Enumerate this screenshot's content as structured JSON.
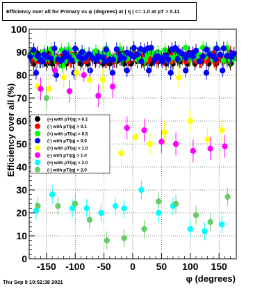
{
  "footer": {
    "timestamp": "Thu Sep  9 10:52:38 2021"
  },
  "chart_data": {
    "type": "scatter",
    "title": "Efficiency over all for Primary vs φ (degrees) at |  η | <= 1.0 at pT > 0.11",
    "xlabel": "φ (degrees)",
    "ylabel": "Efficiency over all (%)",
    "xlim": [
      -180,
      180
    ],
    "ylim": [
      0,
      100
    ],
    "xticks": [
      -150,
      -100,
      -50,
      0,
      50,
      100,
      150
    ],
    "yticks": [
      0,
      10,
      20,
      30,
      40,
      50,
      60,
      70,
      80,
      90,
      100
    ],
    "grid": true,
    "legend_position": "left-middle",
    "series": [
      {
        "name": "(+) with pT/|q| > 0.1",
        "color": "#000000",
        "marker": "circle",
        "band": [
          86,
          90
        ],
        "x": [
          -172,
          -160,
          -150,
          -140,
          -128,
          -115,
          -103,
          -90,
          -78,
          -65,
          -52,
          -40,
          -28,
          -15,
          -3,
          8,
          20,
          32,
          45,
          58,
          70,
          82,
          95,
          108,
          120,
          132,
          145,
          158,
          170
        ],
        "y": [
          85,
          86,
          85,
          85,
          86,
          85,
          86,
          85,
          85,
          86,
          85,
          85,
          86,
          85,
          85,
          86,
          85,
          85,
          86,
          85,
          85,
          86,
          85,
          85,
          86,
          85,
          85,
          86,
          85
        ]
      },
      {
        "name": "(-) with pT/|q| > 0.1",
        "color": "#ff0000",
        "marker": "circle",
        "band": [
          86,
          90
        ],
        "x": [
          -175,
          -162,
          -145,
          -132,
          -120,
          -108,
          -95,
          -82,
          -70,
          -58,
          -45,
          -32,
          -20,
          -8,
          5,
          18,
          30,
          42,
          55,
          68,
          80,
          92,
          105,
          118,
          130,
          142,
          155,
          168
        ],
        "y": [
          87,
          86,
          87,
          86,
          87,
          86,
          87,
          86,
          87,
          86,
          87,
          86,
          87,
          86,
          87,
          86,
          87,
          86,
          87,
          86,
          87,
          86,
          87,
          86,
          87,
          86,
          87,
          86
        ]
      },
      {
        "name": "(+) with pT/|q| > 0.5",
        "color": "#00ff00",
        "marker": "circle",
        "band": [
          86,
          92
        ],
        "x": [
          -170,
          -158,
          -138,
          -122,
          -110,
          -96,
          -84,
          -68,
          -55,
          -42,
          -30,
          -18,
          -6,
          10,
          22,
          36,
          50,
          62,
          75,
          88,
          100,
          114,
          126,
          140,
          152,
          166
        ],
        "y": [
          88,
          87,
          89,
          84,
          88,
          87,
          89,
          88,
          87,
          89,
          88,
          87,
          89,
          88,
          87,
          89,
          88,
          87,
          89,
          88,
          87,
          89,
          88,
          87,
          89,
          88
        ]
      },
      {
        "name": "(-) with pT/|q| > 0.5",
        "color": "#0000ff",
        "marker": "circle",
        "band": [
          86,
          92
        ],
        "x": [
          -168,
          -156,
          -133,
          -118,
          -102,
          -88,
          -74,
          -60,
          -48,
          -35,
          -22,
          -10,
          2,
          15,
          28,
          40,
          52,
          66,
          78,
          92,
          104,
          116,
          128,
          144,
          156,
          172
        ],
        "y": [
          81,
          86,
          80,
          88,
          81,
          87,
          82,
          88,
          86,
          81,
          87,
          82,
          88,
          86,
          82,
          88,
          86,
          81,
          87,
          82,
          88,
          86,
          81,
          87,
          82,
          88
        ]
      },
      {
        "name": "(+) with pT/|q| > 1.0",
        "color": "#ffff00",
        "marker": "circle",
        "x": [
          -165,
          -145,
          -120,
          -98,
          -75,
          -52,
          -20,
          5,
          30,
          55,
          80,
          100,
          130,
          155
        ],
        "y": [
          75,
          74,
          79,
          81,
          78,
          78,
          46,
          53,
          50,
          55,
          79,
          60,
          52,
          56
        ]
      },
      {
        "name": "(-) with pT/|q| > 1.0",
        "color": "#ff00ff",
        "marker": "circle",
        "x": [
          -160,
          -135,
          -110,
          -85,
          -60,
          -35,
          -10,
          20,
          50,
          75,
          105,
          135,
          160
        ],
        "y": [
          74,
          82,
          73,
          80,
          71,
          75,
          57,
          56,
          51,
          50,
          47,
          48,
          49
        ]
      },
      {
        "name": "(+) with pT/|q| > 2.0",
        "color": "#00ffff",
        "marker": "circle",
        "x": [
          -168,
          -140,
          -105,
          -80,
          -55,
          -30,
          -15,
          15,
          45,
          70,
          100,
          125,
          155
        ],
        "y": [
          21,
          28,
          22,
          22,
          20,
          23,
          22,
          30,
          20,
          23,
          13,
          12,
          15
        ]
      },
      {
        "name": "(-) with pT/|q| > 2.0",
        "color": "#66cc66",
        "marker": "circle",
        "x": [
          -165,
          -150,
          -130,
          -100,
          -75,
          -45,
          -15,
          20,
          45,
          75,
          110,
          135,
          165
        ],
        "y": [
          23,
          70,
          23,
          24,
          17,
          8,
          9,
          13,
          25,
          24,
          19,
          16,
          27
        ]
      }
    ]
  }
}
